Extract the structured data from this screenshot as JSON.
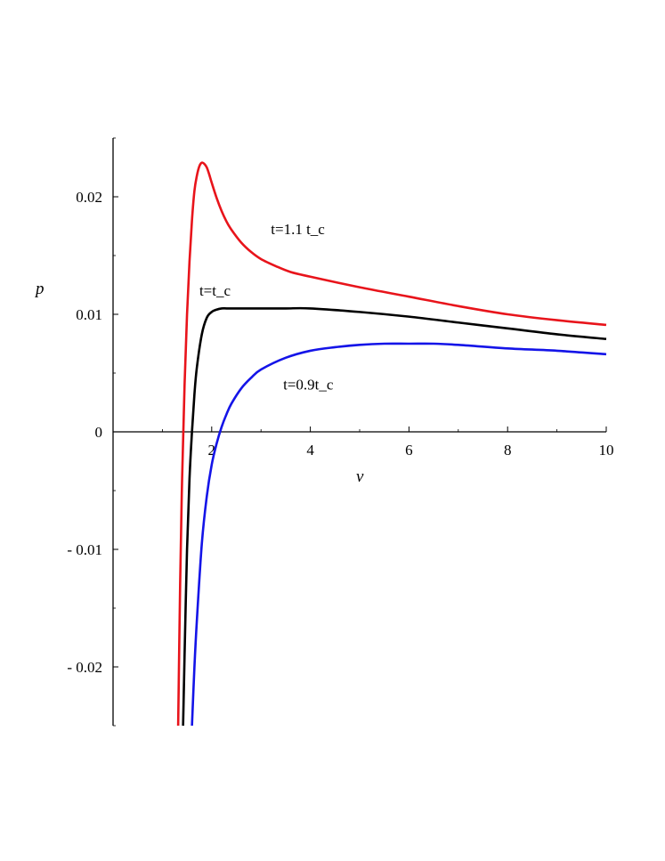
{
  "chart_data": {
    "type": "line",
    "title": "",
    "xlabel": "v",
    "ylabel": "p",
    "xlim": [
      0,
      10
    ],
    "ylim": [
      -0.025,
      0.025
    ],
    "x_ticks": [
      {
        "value": 2,
        "label": "2"
      },
      {
        "value": 4,
        "label": "4"
      },
      {
        "value": 6,
        "label": "6"
      },
      {
        "value": 8,
        "label": "8"
      },
      {
        "value": 10,
        "label": "10"
      }
    ],
    "y_ticks": [
      {
        "value": 0.02,
        "label": "0.02"
      },
      {
        "value": 0.01,
        "label": "0.01"
      },
      {
        "value": 0,
        "label": "0"
      },
      {
        "value": -0.01,
        "label": "- 0.01"
      },
      {
        "value": -0.02,
        "label": "- 0.02"
      }
    ],
    "grid": false,
    "series": [
      {
        "color": "#e8141b",
        "x": [
          1.32,
          1.36,
          1.4,
          1.45,
          1.5,
          1.55,
          1.6,
          1.65,
          1.7,
          1.75,
          1.8,
          1.85,
          1.9,
          1.95,
          2.0,
          2.1,
          2.2,
          2.3,
          2.4,
          2.6,
          2.8,
          3.0,
          3.3,
          3.6,
          4.0,
          5.0,
          6.0,
          7.0,
          8.0,
          9.0,
          10.0
        ],
        "y": [
          -0.025,
          -0.013,
          -0.004,
          0.004,
          0.01,
          0.0145,
          0.018,
          0.0205,
          0.0218,
          0.0226,
          0.0229,
          0.0228,
          0.0225,
          0.0219,
          0.0212,
          0.0199,
          0.0188,
          0.0179,
          0.0172,
          0.0161,
          0.0153,
          0.0147,
          0.0141,
          0.0136,
          0.0132,
          0.0123,
          0.0115,
          0.0107,
          0.01,
          0.0095,
          0.0091
        ]
      },
      {
        "color": "#000000",
        "x": [
          1.42,
          1.45,
          1.5,
          1.55,
          1.6,
          1.65,
          1.7,
          1.8,
          1.9,
          2.0,
          2.1,
          2.2,
          2.3,
          2.4,
          2.6,
          2.8,
          3.0,
          3.5,
          4.0,
          5.0,
          6.0,
          7.0,
          8.0,
          9.0,
          10.0
        ],
        "y": [
          -0.025,
          -0.019,
          -0.01,
          -0.004,
          0.0,
          0.0032,
          0.0055,
          0.0083,
          0.0097,
          0.0102,
          0.0104,
          0.0105,
          0.0105,
          0.0105,
          0.0105,
          0.0105,
          0.0105,
          0.0105,
          0.0105,
          0.0102,
          0.0098,
          0.0093,
          0.0088,
          0.0083,
          0.0079
        ]
      },
      {
        "color": "#1414e8",
        "x": [
          1.6,
          1.65,
          1.7,
          1.8,
          1.9,
          2.0,
          2.1,
          2.2,
          2.3,
          2.4,
          2.6,
          2.8,
          3.0,
          3.5,
          4.0,
          4.5,
          5.0,
          5.5,
          6.0,
          6.5,
          7.0,
          8.0,
          9.0,
          10.0
        ],
        "y": [
          -0.025,
          -0.02,
          -0.016,
          -0.0095,
          -0.0055,
          -0.0028,
          -0.001,
          0.0004,
          0.0015,
          0.0024,
          0.0037,
          0.0046,
          0.0053,
          0.0063,
          0.0069,
          0.0072,
          0.0074,
          0.0075,
          0.0075,
          0.0075,
          0.0074,
          0.0071,
          0.0069,
          0.0066
        ]
      }
    ],
    "annotations": [
      {
        "text": "t=1.1 t_c",
        "x": 3.2,
        "y": 0.0168
      },
      {
        "text": "t=t_c",
        "x": 1.75,
        "y": 0.0116
      },
      {
        "text": "t=0.9t_c",
        "x": 3.45,
        "y": 0.0036
      }
    ]
  }
}
